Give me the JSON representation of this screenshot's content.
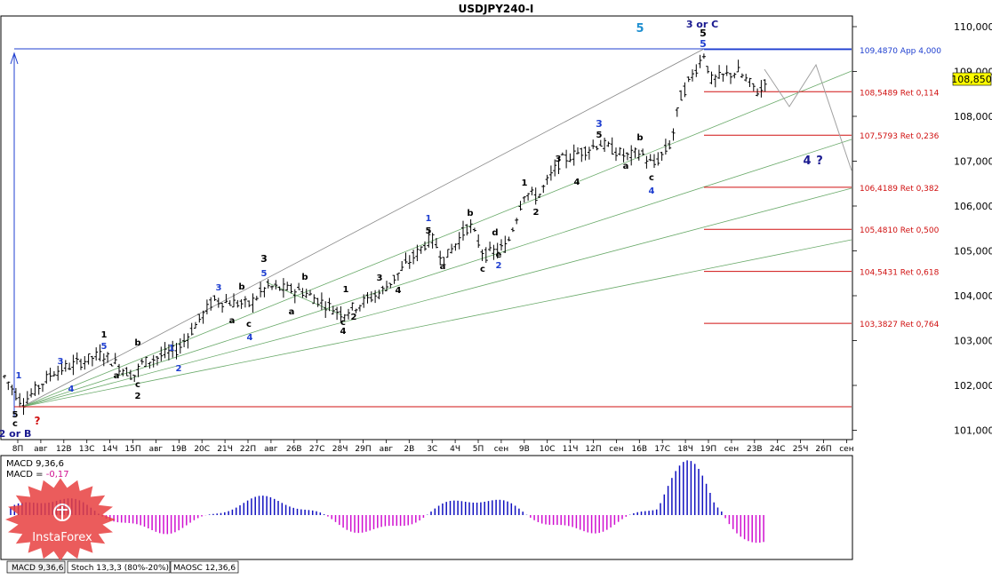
{
  "window": {
    "title": "USDJPY240-I"
  },
  "price_label": "108,850",
  "y_ticks": [
    "110,000",
    "109,000",
    "108,000",
    "107,000",
    "106,000",
    "105,000",
    "104,000",
    "103,000",
    "102,000",
    "101,000"
  ],
  "x_ticks": [
    "8П",
    "авг",
    "12В",
    "13С",
    "14Ч",
    "15П",
    "авг",
    "19В",
    "20С",
    "21Ч",
    "22П",
    "авг",
    "26В",
    "27С",
    "28Ч",
    "29П",
    "авг",
    "2В",
    "3С",
    "4Ч",
    "5П",
    "сен",
    "9В",
    "10С",
    "11Ч",
    "12П",
    "сен",
    "16В",
    "17С",
    "18Ч",
    "19П",
    "сен",
    "23В",
    "24С",
    "25Ч",
    "26П",
    "сен"
  ],
  "levels": [
    {
      "label": "109,4870 App 4,000",
      "price": 109.487,
      "color": "#1f3fd0"
    },
    {
      "label": "108,5489 Ret 0,114",
      "price": 108.5489,
      "color": "#d01010"
    },
    {
      "label": "107,5793 Ret 0,236",
      "price": 107.5793,
      "color": "#d01010"
    },
    {
      "label": "106,4189 Ret 0,382",
      "price": 106.4189,
      "color": "#d01010"
    },
    {
      "label": "105,4810 Ret 0,500",
      "price": 105.481,
      "color": "#d01010"
    },
    {
      "label": "104,5431 Ret 0,618",
      "price": 104.5431,
      "color": "#d01010"
    },
    {
      "label": "103,3827 Ret 0,764",
      "price": 103.3827,
      "color": "#d01010"
    }
  ],
  "wave_labels": [
    {
      "text": "5",
      "color": "#1f8fd0"
    },
    {
      "text": "3 or C",
      "color": "#1a1a90"
    },
    {
      "text": "5",
      "color": "#000000"
    },
    {
      "text": "5",
      "color": "#1f3fd0"
    },
    {
      "text": "4",
      "color": "#1a1a90"
    },
    {
      "text": "?",
      "color": "#1a1a90"
    },
    {
      "text": "2 or B",
      "color": "#1a1a90"
    },
    {
      "text": "?",
      "color": "#d01010"
    },
    {
      "text": "1",
      "color": "#1f3fd0"
    },
    {
      "text": "5",
      "color": "#000000"
    },
    {
      "text": "c",
      "color": "#000000"
    },
    {
      "text": "3",
      "color": "#1f3fd0"
    },
    {
      "text": "4",
      "color": "#1f3fd0"
    },
    {
      "text": "1",
      "color": "#000000"
    },
    {
      "text": "5",
      "color": "#1f3fd0"
    },
    {
      "text": "a",
      "color": "#000000"
    },
    {
      "text": "b",
      "color": "#000000"
    },
    {
      "text": "c",
      "color": "#000000"
    },
    {
      "text": "2",
      "color": "#000000"
    },
    {
      "text": "1",
      "color": "#1f3fd0"
    },
    {
      "text": "2",
      "color": "#1f3fd0"
    },
    {
      "text": "3",
      "color": "#1f3fd0"
    },
    {
      "text": "b",
      "color": "#000000"
    },
    {
      "text": "a",
      "color": "#000000"
    },
    {
      "text": "c",
      "color": "#000000"
    },
    {
      "text": "4",
      "color": "#1f3fd0"
    },
    {
      "text": "3",
      "color": "#000000"
    },
    {
      "text": "5",
      "color": "#1f3fd0"
    },
    {
      "text": "b",
      "color": "#000000"
    },
    {
      "text": "a",
      "color": "#000000"
    },
    {
      "text": "c",
      "color": "#000000"
    },
    {
      "text": "4",
      "color": "#000000"
    },
    {
      "text": "1",
      "color": "#000000"
    },
    {
      "text": "2",
      "color": "#000000"
    },
    {
      "text": "3",
      "color": "#000000"
    },
    {
      "text": "4",
      "color": "#000000"
    },
    {
      "text": "1",
      "color": "#1f3fd0"
    },
    {
      "text": "5",
      "color": "#000000"
    },
    {
      "text": "a",
      "color": "#000000"
    },
    {
      "text": "b",
      "color": "#000000"
    },
    {
      "text": "c",
      "color": "#000000"
    },
    {
      "text": "d",
      "color": "#000000"
    },
    {
      "text": "e",
      "color": "#000000"
    },
    {
      "text": "2",
      "color": "#1f3fd0"
    },
    {
      "text": "1",
      "color": "#000000"
    },
    {
      "text": "2",
      "color": "#000000"
    },
    {
      "text": "3",
      "color": "#000000"
    },
    {
      "text": "4",
      "color": "#000000"
    },
    {
      "text": "3",
      "color": "#1f3fd0"
    },
    {
      "text": "5",
      "color": "#000000"
    },
    {
      "text": "a",
      "color": "#000000"
    },
    {
      "text": "b",
      "color": "#000000"
    },
    {
      "text": "c",
      "color": "#000000"
    },
    {
      "text": "4",
      "color": "#1f3fd0"
    }
  ],
  "macd": {
    "label": "MACD 9,36,6",
    "value_label": "MACD = ",
    "value": "-0,17",
    "value_color": "#d01090"
  },
  "tabs": [
    {
      "label": "MACD 9,36,6"
    },
    {
      "label": "Stoch 13,3,3 (80%-20%)"
    },
    {
      "label": "MAOSC 12,36,6"
    }
  ],
  "watermark": "InstaForex",
  "colors": {
    "candle": "#000000",
    "fib_app": "#1f3fd0",
    "fib_ret": "#d01010",
    "fan_lines": "#6aaa6a",
    "forecast": "#a0a0a0",
    "hist_pos": "#1010c0",
    "hist_neg": "#d010d0",
    "brand": "#e84040",
    "price_tag": "#ffff00"
  }
}
